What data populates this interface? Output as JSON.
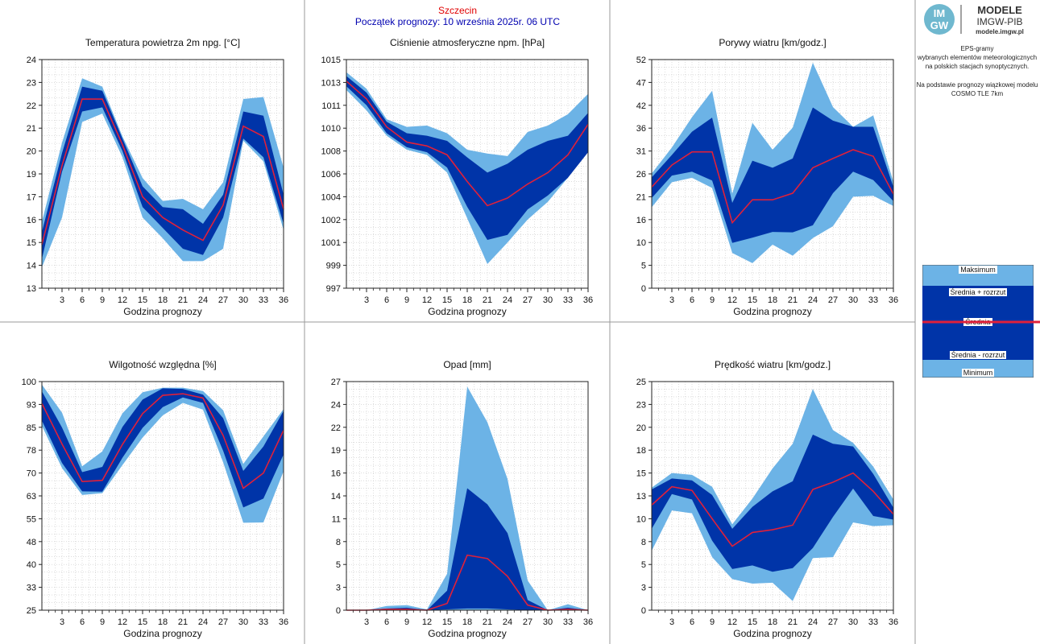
{
  "header": {
    "station": "Szczecin",
    "forecast_start": "Początek prognozy: 10 września 2025r. 06 UTC"
  },
  "logo": {
    "mark": "IM GW",
    "line1": "MODELE",
    "line2": "IMGW-PIB",
    "line3": "modele.imgw.pl"
  },
  "side_note": {
    "line1": "EPS-gramy",
    "line2": "wybranych elementów meteorologicznych",
    "line3": "na polskich stacjach  synoptycznych.",
    "line4": "Na podstawie prognozy wiązkowej modelu",
    "line5": "COSMO TLE 7km"
  },
  "legend": {
    "max": "Maksimum",
    "mean_plus": "Średnia + rozrzut",
    "mean": "Średnia",
    "mean_minus": "Średnia - rozrzut",
    "min": "Minimum"
  },
  "colors": {
    "outer_band": "#6cb3e6",
    "inner_band": "#0034a8",
    "mean_line": "#e0203a",
    "station_text": "#e00000",
    "forecast_text": "#0000b0",
    "grid": "#c8c8c8"
  },
  "chart_data": [
    {
      "type": "area",
      "title": "Temperatura powietrza 2m npg. [°C]",
      "xlabel": "Godzina prognozy",
      "ylabel": "",
      "x": [
        0,
        3,
        6,
        9,
        12,
        15,
        18,
        21,
        24,
        27,
        30,
        33,
        36
      ],
      "xticks": [
        3,
        6,
        9,
        12,
        15,
        18,
        21,
        24,
        27,
        30,
        33,
        36
      ],
      "ylim": [
        13,
        24
      ],
      "yticks": [
        "13",
        "14",
        "15",
        "16",
        "17",
        "19",
        "20",
        "21",
        "22",
        "23",
        "24"
      ],
      "grid": true,
      "series": [
        {
          "name": "Minimum",
          "values": [
            14.0,
            16.4,
            21.0,
            21.4,
            19.3,
            16.4,
            15.4,
            14.3,
            14.3,
            14.9,
            20.1,
            19.1,
            15.8
          ]
        },
        {
          "name": "Średnia - rozrzut",
          "values": [
            14.4,
            18.6,
            21.5,
            21.7,
            19.6,
            16.9,
            15.9,
            14.9,
            14.6,
            16.4,
            20.2,
            19.3,
            16.1
          ]
        },
        {
          "name": "Średnia",
          "values": [
            15.1,
            18.9,
            22.1,
            22.1,
            19.9,
            17.4,
            16.4,
            15.8,
            15.3,
            17.0,
            20.8,
            20.3,
            16.8
          ]
        },
        {
          "name": "Średnia + rozrzut",
          "values": [
            15.7,
            19.5,
            22.7,
            22.5,
            20.2,
            17.9,
            16.9,
            16.8,
            16.1,
            17.5,
            21.5,
            21.3,
            17.5
          ]
        },
        {
          "name": "Maksimum",
          "values": [
            16.2,
            20.0,
            23.1,
            22.7,
            20.3,
            18.3,
            17.2,
            17.3,
            16.8,
            18.1,
            22.1,
            22.2,
            18.8
          ]
        }
      ]
    },
    {
      "type": "area",
      "title": "Ciśnienie atmosferyczne npm. [hPa]",
      "xlabel": "Godzina prognozy",
      "ylabel": "",
      "x": [
        0,
        3,
        6,
        9,
        12,
        15,
        18,
        21,
        24,
        27,
        30,
        33,
        36
      ],
      "xticks": [
        3,
        6,
        9,
        12,
        15,
        18,
        21,
        24,
        27,
        30,
        33,
        36
      ],
      "ylim": [
        997,
        1015
      ],
      "yticks": [
        "997",
        "999",
        "1001",
        "1002",
        "1004",
        "1006",
        "1008",
        "1010",
        "1011",
        "1013",
        "1015"
      ],
      "grid": true,
      "series": [
        {
          "name": "Minimum",
          "values": [
            1012.6,
            1011.0,
            1009.0,
            1007.9,
            1007.5,
            1006.1,
            1002.5,
            998.9,
            1000.6,
            1002.4,
            1003.8,
            1005.7,
            1008.0
          ]
        },
        {
          "name": "Średnia - rozrzut",
          "values": [
            1012.9,
            1011.4,
            1009.2,
            1008.1,
            1007.7,
            1006.5,
            1003.4,
            1000.8,
            1001.2,
            1003.2,
            1004.3,
            1005.7,
            1007.7
          ]
        },
        {
          "name": "Średnia",
          "values": [
            1013.3,
            1011.9,
            1009.7,
            1008.5,
            1008.2,
            1007.5,
            1005.4,
            1003.5,
            1004.1,
            1005.2,
            1006.1,
            1007.5,
            1009.9
          ]
        },
        {
          "name": "Średnia + rozrzut",
          "values": [
            1013.7,
            1012.4,
            1010.1,
            1009.2,
            1009.0,
            1008.6,
            1007.3,
            1006.1,
            1006.8,
            1007.9,
            1008.6,
            1009.0,
            1010.8
          ]
        },
        {
          "name": "Maksimum",
          "values": [
            1014.0,
            1012.7,
            1010.3,
            1009.7,
            1009.8,
            1009.2,
            1007.9,
            1007.6,
            1007.4,
            1009.3,
            1009.8,
            1010.7,
            1012.3
          ]
        }
      ]
    },
    {
      "type": "area",
      "title": "Porywy wiatru [km/godz.]",
      "xlabel": "Godzina prognozy",
      "ylabel": "",
      "x": [
        0,
        3,
        6,
        9,
        12,
        15,
        18,
        21,
        24,
        27,
        30,
        33,
        36
      ],
      "xticks": [
        3,
        6,
        9,
        12,
        15,
        18,
        21,
        24,
        27,
        30,
        33,
        36
      ],
      "ylim": [
        0,
        52
      ],
      "yticks": [
        "0",
        "5",
        "10",
        "16",
        "21",
        "26",
        "31",
        "36",
        "42",
        "47",
        "52"
      ],
      "grid": true,
      "series": [
        {
          "name": "Minimum",
          "values": [
            18.4,
            24.1,
            25.1,
            22.8,
            8.0,
            5.7,
            9.9,
            7.4,
            11.4,
            14.1,
            20.8,
            21.0,
            18.7
          ]
        },
        {
          "name": "Średnia - rozrzut",
          "values": [
            20.5,
            25.6,
            26.5,
            24.5,
            10.3,
            11.5,
            12.8,
            12.7,
            14.3,
            21.6,
            26.5,
            24.6,
            19.8
          ]
        },
        {
          "name": "Średnia",
          "values": [
            23.0,
            28.0,
            31.0,
            31.0,
            14.9,
            20.1,
            20.1,
            21.6,
            27.4,
            29.5,
            31.5,
            30.0,
            21.4
          ]
        },
        {
          "name": "Średnia + rozrzut",
          "values": [
            25.2,
            30.3,
            35.6,
            38.8,
            19.4,
            29.0,
            27.4,
            29.5,
            41.1,
            38.1,
            36.7,
            36.7,
            23.0
          ]
        },
        {
          "name": "Maksimum",
          "values": [
            26.1,
            32.0,
            38.9,
            44.9,
            21.5,
            37.6,
            31.5,
            36.5,
            51.3,
            41.2,
            36.7,
            39.3,
            24.2
          ]
        }
      ]
    },
    {
      "type": "area",
      "title": "Wilgotność względna [%]",
      "xlabel": "Godzina prognozy",
      "ylabel": "",
      "x": [
        0,
        3,
        6,
        9,
        12,
        15,
        18,
        21,
        24,
        27,
        30,
        33,
        36
      ],
      "xticks": [
        3,
        6,
        9,
        12,
        15,
        18,
        21,
        24,
        27,
        30,
        33,
        36
      ],
      "ylim": [
        25,
        100
      ],
      "yticks": [
        "25",
        "33",
        "40",
        "48",
        "55",
        "63",
        "70",
        "78",
        "85",
        "93",
        "100"
      ],
      "grid": true,
      "series": [
        {
          "name": "Minimum",
          "values": [
            85.5,
            71.6,
            62.8,
            63.4,
            72.6,
            81.6,
            88.9,
            93.0,
            90.8,
            73.5,
            53.7,
            53.8,
            70.6
          ]
        },
        {
          "name": "Średnia - rozrzut",
          "values": [
            87.2,
            73.3,
            64.0,
            63.9,
            75.0,
            84.8,
            91.6,
            94.8,
            93.0,
            77.3,
            58.7,
            61.6,
            76.1
          ]
        },
        {
          "name": "Średnia",
          "values": [
            92.8,
            79.5,
            67.2,
            67.6,
            79.4,
            89.5,
            95.5,
            96.0,
            94.6,
            82.3,
            65.0,
            70.0,
            84.0
          ]
        },
        {
          "name": "Średnia + rozrzut",
          "values": [
            96.8,
            84.9,
            70.3,
            72.0,
            85.1,
            94.1,
            97.8,
            97.6,
            95.7,
            88.0,
            70.7,
            78.7,
            90.4
          ]
        },
        {
          "name": "Maksimum",
          "values": [
            99.0,
            89.8,
            72.2,
            77.1,
            89.6,
            96.5,
            98.0,
            98.0,
            96.9,
            90.6,
            73.0,
            82.0,
            91.0
          ]
        }
      ]
    },
    {
      "type": "area",
      "title": "Opad [mm]",
      "xlabel": "Godzina prognozy",
      "ylabel": "",
      "x": [
        0,
        3,
        6,
        9,
        12,
        15,
        18,
        21,
        24,
        27,
        30,
        33,
        36
      ],
      "xticks": [
        3,
        6,
        9,
        12,
        15,
        18,
        21,
        24,
        27,
        30,
        33,
        36
      ],
      "ylim": [
        0,
        27
      ],
      "yticks": [
        "0",
        "3",
        "5",
        "8",
        "11",
        "14",
        "16",
        "19",
        "22",
        "24",
        "27"
      ],
      "grid": true,
      "series": [
        {
          "name": "Minimum",
          "values": [
            0,
            0,
            0,
            0,
            0,
            0,
            0,
            0,
            0,
            0,
            0,
            0,
            0
          ]
        },
        {
          "name": "Średnia - rozrzut",
          "values": [
            0,
            0,
            0,
            0,
            0,
            0.1,
            0.2,
            0.2,
            0.1,
            0,
            0,
            0,
            0
          ]
        },
        {
          "name": "Średnia",
          "values": [
            0,
            0,
            0.1,
            0.1,
            0,
            0.8,
            6.5,
            6.1,
            4.0,
            0.6,
            0,
            0.1,
            0
          ]
        },
        {
          "name": "Średnia + rozrzut",
          "values": [
            0,
            0,
            0.2,
            0.3,
            0,
            2.3,
            14.4,
            12.5,
            9.1,
            1.2,
            0,
            0.3,
            0
          ]
        },
        {
          "name": "Maksimum",
          "values": [
            0,
            0,
            0.5,
            0.6,
            0.1,
            4.3,
            26.4,
            22.2,
            15.5,
            3.5,
            0,
            0.7,
            0
          ]
        }
      ]
    },
    {
      "type": "area",
      "title": "Prędkość wiatru [km/godz.]",
      "xlabel": "Godzina prognozy",
      "ylabel": "",
      "x": [
        0,
        3,
        6,
        9,
        12,
        15,
        18,
        21,
        24,
        27,
        30,
        33,
        36
      ],
      "xticks": [
        3,
        6,
        9,
        12,
        15,
        18,
        21,
        24,
        27,
        30,
        33,
        36
      ],
      "ylim": [
        0,
        25
      ],
      "yticks": [
        "0",
        "3",
        "5",
        "8",
        "10",
        "13",
        "15",
        "18",
        "20",
        "23",
        "25"
      ],
      "grid": true,
      "series": [
        {
          "name": "Minimum",
          "values": [
            6.5,
            10.9,
            10.6,
            5.8,
            3.4,
            2.9,
            3.0,
            1.0,
            5.7,
            5.8,
            9.6,
            9.2,
            9.3
          ]
        },
        {
          "name": "Średnia - rozrzut",
          "values": [
            8.9,
            12.7,
            12.1,
            7.6,
            4.5,
            4.9,
            4.2,
            4.6,
            6.8,
            10.2,
            13.3,
            10.3,
            9.9
          ]
        },
        {
          "name": "Średnia",
          "values": [
            11.5,
            13.5,
            13.1,
            10.0,
            7.0,
            8.5,
            8.8,
            9.3,
            13.2,
            14.0,
            15.0,
            13.0,
            10.5
          ]
        },
        {
          "name": "Średnia + rozrzut",
          "values": [
            13.2,
            14.4,
            14.2,
            12.6,
            8.9,
            11.3,
            13.0,
            14.1,
            19.2,
            18.2,
            17.9,
            14.9,
            11.2
          ]
        },
        {
          "name": "Maksimum",
          "values": [
            13.4,
            15.0,
            14.8,
            13.5,
            9.4,
            12.2,
            15.5,
            18.2,
            24.2,
            19.7,
            18.3,
            15.7,
            12.1
          ]
        }
      ]
    }
  ]
}
